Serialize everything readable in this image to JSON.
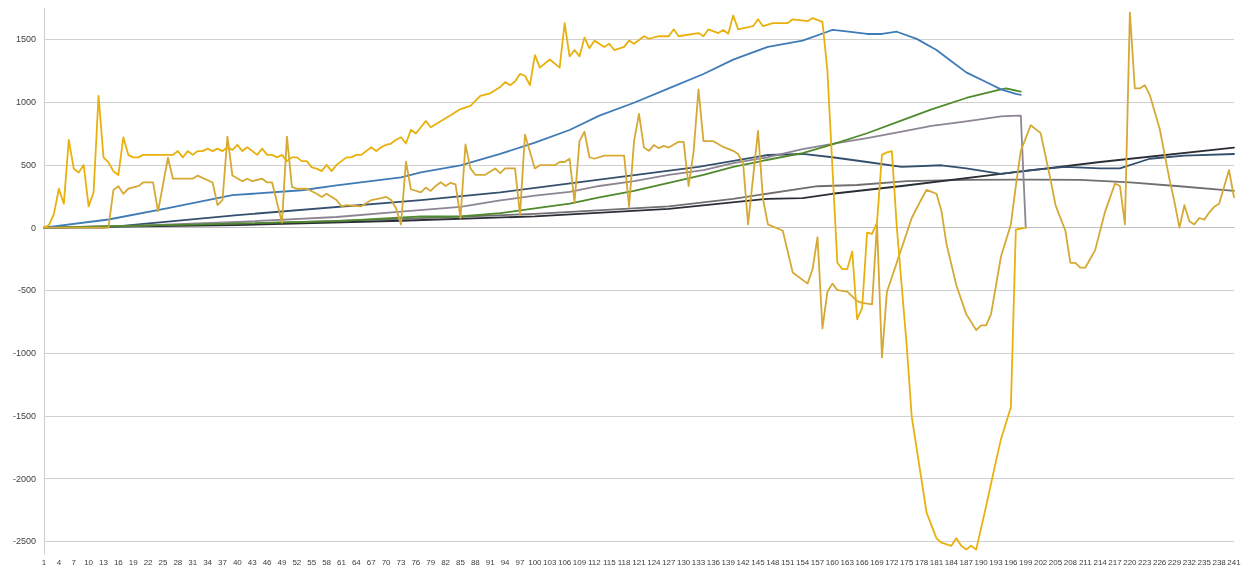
{
  "chart_data": {
    "type": "line",
    "grid": "y",
    "xlim": [
      1,
      241
    ],
    "ylim": [
      -2600,
      1750
    ],
    "xticks": [
      1,
      4,
      7,
      10,
      13,
      16,
      19,
      22,
      25,
      28,
      31,
      34,
      37,
      40,
      43,
      46,
      49,
      52,
      55,
      58,
      61,
      64,
      67,
      70,
      73,
      76,
      79,
      82,
      85,
      88,
      91,
      94,
      97,
      100,
      103,
      106,
      109,
      112,
      115,
      118,
      121,
      124,
      127,
      130,
      133,
      136,
      139,
      142,
      145,
      148,
      151,
      154,
      157,
      160,
      163,
      166,
      169,
      172,
      175,
      178,
      181,
      184,
      187,
      190,
      193,
      196,
      199,
      202,
      205,
      208,
      211,
      214,
      217,
      220,
      223,
      226,
      229,
      232,
      235,
      238,
      241
    ],
    "yticks": [
      -2500,
      -2000,
      -1500,
      -1000,
      -500,
      0,
      500,
      1000,
      1500
    ],
    "series": [
      {
        "color": "#707070",
        "x": [
          1,
          40,
          73,
          100,
          127,
          140,
          157,
          165,
          175,
          187,
          200,
          210,
          220,
          230,
          241
        ],
        "values": [
          0,
          30,
          70,
          110,
          170,
          230,
          330,
          340,
          370,
          380,
          383,
          380,
          360,
          330,
          293
        ]
      },
      {
        "color": "#2a2f36",
        "x": [
          1,
          40,
          73,
          100,
          127,
          147,
          154,
          160,
          174,
          194,
          214,
          241
        ],
        "values": [
          0,
          20,
          55,
          90,
          150,
          230,
          235,
          270,
          332,
          428,
          523,
          637
        ]
      },
      {
        "color": "#34506e",
        "x": [
          1,
          13,
          40,
          77,
          93,
          113,
          133,
          147,
          154,
          160,
          167,
          174,
          182,
          187,
          194,
          200,
          207,
          214,
          218,
          224,
          231,
          241
        ],
        "values": [
          0,
          0,
          100,
          220,
          281,
          383,
          485,
          579,
          587,
          561,
          523,
          485,
          497,
          472,
          428,
          459,
          485,
          472,
          472,
          549,
          574,
          587
        ]
      },
      {
        "color": "#8e8594",
        "x": [
          1,
          20,
          40,
          60,
          73,
          85,
          93,
          100,
          107,
          113,
          120,
          127,
          134,
          140,
          147,
          154,
          160,
          167,
          174,
          180,
          187,
          194,
          198,
          199
        ],
        "values": [
          0,
          15,
          45,
          85,
          128,
          166,
          217,
          255,
          285,
          332,
          370,
          421,
          459,
          515,
          561,
          625,
          668,
          714,
          765,
          811,
          847,
          887,
          893,
          0
        ]
      },
      {
        "color": "#4f8a2c",
        "x": [
          1,
          33,
          60,
          77,
          85,
          93,
          100,
          107,
          113,
          120,
          127,
          134,
          140,
          147,
          154,
          160,
          167,
          174,
          180,
          187,
          194,
          195,
          198
        ],
        "values": [
          0,
          26,
          52,
          90,
          89,
          115,
          153,
          191,
          242,
          293,
          357,
          421,
          485,
          541,
          593,
          663,
          752,
          854,
          943,
          1033,
          1102,
          1109,
          1084
        ]
      },
      {
        "color": "#3f7bb6",
        "x": [
          1,
          14,
          26,
          39,
          53,
          60,
          73,
          77,
          85,
          93,
          100,
          107,
          113,
          120,
          127,
          134,
          140,
          147,
          154,
          159,
          160,
          162,
          167,
          170,
          173,
          177,
          181,
          184,
          187,
          191,
          194,
          197,
          198
        ],
        "values": [
          0,
          65,
          155,
          259,
          298,
          337,
          400,
          440,
          497,
          587,
          677,
          778,
          893,
          995,
          1109,
          1224,
          1339,
          1441,
          1490,
          1561,
          1576,
          1568,
          1543,
          1543,
          1561,
          1504,
          1415,
          1326,
          1237,
          1160,
          1102,
          1066,
          1058
        ]
      },
      {
        "color": "#d6a935",
        "x": [
          1,
          14,
          15,
          16,
          17,
          18,
          20,
          21,
          23,
          24,
          26,
          27,
          31,
          32,
          35,
          36,
          37,
          38,
          39,
          41,
          42,
          43,
          45,
          46,
          47,
          49,
          50,
          51,
          52,
          54,
          56,
          57,
          58,
          60,
          61,
          62,
          65,
          67,
          69,
          70,
          71,
          72,
          73,
          74,
          75,
          77,
          78,
          79,
          80,
          81,
          82,
          83,
          84,
          85,
          86,
          87,
          88,
          90,
          92,
          93,
          94,
          96,
          97,
          98,
          100,
          101,
          104,
          105,
          106,
          107,
          108,
          109,
          110,
          111,
          112,
          114,
          115,
          118,
          119,
          120,
          121,
          122,
          123,
          124,
          125,
          126,
          127,
          129,
          130,
          131,
          132,
          133,
          134,
          136,
          138,
          140,
          141,
          142,
          143,
          145,
          146,
          147,
          150,
          152,
          155,
          156,
          157,
          158,
          159,
          160,
          161,
          163,
          165,
          166,
          168,
          169,
          170,
          171,
          172,
          176,
          178,
          179,
          181,
          182,
          183,
          185,
          187,
          189,
          190,
          191,
          192,
          194,
          196,
          197,
          198,
          200,
          202,
          204,
          205,
          207,
          208,
          209,
          210,
          211,
          213,
          215,
          217,
          218,
          219,
          220,
          221,
          222,
          223,
          224,
          226,
          228,
          229,
          230,
          231,
          232,
          233,
          234,
          235,
          236,
          237,
          238,
          240,
          241
        ],
        "values": [
          0,
          0,
          300,
          330,
          270,
          310,
          330,
          360,
          360,
          130,
          557,
          390,
          390,
          415,
          360,
          180,
          220,
          725,
          415,
          370,
          390,
          370,
          390,
          360,
          360,
          40,
          725,
          325,
          310,
          310,
          270,
          245,
          270,
          220,
          170,
          180,
          170,
          220,
          235,
          245,
          220,
          155,
          25,
          525,
          306,
          281,
          319,
          293,
          332,
          362,
          332,
          357,
          345,
          77,
          663,
          472,
          421,
          421,
          472,
          434,
          472,
          472,
          102,
          740,
          472,
          498,
          498,
          523,
          523,
          549,
          204,
          689,
          765,
          561,
          549,
          574,
          574,
          574,
          166,
          689,
          906,
          638,
          612,
          658,
          633,
          651,
          638,
          684,
          684,
          332,
          600,
          1102,
          689,
          689,
          643,
          612,
          587,
          510,
          26,
          770,
          230,
          26,
          -25,
          -357,
          -446,
          -332,
          -76,
          -803,
          -510,
          -446,
          -497,
          -510,
          -586,
          -599,
          -612,
          26,
          -1033,
          -510,
          -395,
          77,
          230,
          301,
          270,
          133,
          -128,
          -459,
          -689,
          -816,
          -778,
          -778,
          -689,
          -230,
          26,
          332,
          612,
          816,
          753,
          383,
          179,
          -25,
          -281,
          -281,
          -319,
          -319,
          -179,
          128,
          352,
          332,
          26,
          1714,
          1109,
          1109,
          1135,
          1058,
          790,
          383,
          204,
          0,
          179,
          51,
          26,
          77,
          64,
          120,
          166,
          191,
          459,
          242
        ]
      },
      {
        "color": "#e8b10e",
        "x": [
          1,
          2,
          3,
          4,
          5,
          6,
          7,
          8,
          9,
          10,
          11,
          12,
          13,
          14,
          15,
          16,
          17,
          18,
          19,
          20,
          21,
          27,
          28,
          29,
          30,
          31,
          32,
          33,
          34,
          35,
          36,
          37,
          38,
          39,
          40,
          41,
          42,
          43,
          44,
          45,
          46,
          47,
          48,
          49,
          50,
          51,
          52,
          53,
          54,
          55,
          56,
          57,
          58,
          59,
          60,
          61,
          62,
          63,
          64,
          65,
          66,
          67,
          68,
          69,
          70,
          71,
          72,
          73,
          74,
          75,
          76,
          78,
          79,
          83,
          85,
          87,
          89,
          91,
          93,
          94,
          95,
          96,
          97,
          98,
          99,
          100,
          101,
          103,
          105,
          106,
          107,
          108,
          109,
          110,
          111,
          112,
          114,
          115,
          116,
          118,
          119,
          120,
          122,
          123,
          125,
          127,
          128,
          129,
          133,
          134,
          135,
          137,
          138,
          139,
          140,
          141,
          144,
          145,
          146,
          148,
          151,
          152,
          155,
          156,
          158,
          159,
          161,
          162,
          163,
          164,
          165,
          166,
          167,
          168,
          169,
          170,
          171,
          172,
          173,
          175,
          176,
          178,
          179,
          181,
          182,
          184,
          185,
          186,
          187,
          188,
          189,
          191,
          193,
          194,
          196,
          197,
          199
        ],
        "values": [
          0,
          20,
          110,
          310,
          190,
          700,
          470,
          440,
          500,
          170,
          280,
          1050,
          560,
          520,
          450,
          420,
          720,
          580,
          560,
          560,
          580,
          580,
          610,
          560,
          610,
          580,
          610,
          610,
          630,
          610,
          630,
          610,
          640,
          620,
          660,
          610,
          640,
          610,
          580,
          630,
          580,
          580,
          560,
          580,
          530,
          560,
          560,
          530,
          530,
          480,
          470,
          450,
          500,
          450,
          500,
          530,
          560,
          560,
          580,
          580,
          610,
          640,
          610,
          640,
          660,
          670,
          700,
          720,
          670,
          780,
          750,
          850,
          800,
          895,
          945,
          970,
          1050,
          1070,
          1120,
          1160,
          1135,
          1165,
          1225,
          1210,
          1135,
          1375,
          1275,
          1340,
          1275,
          1630,
          1365,
          1415,
          1365,
          1515,
          1430,
          1490,
          1440,
          1465,
          1415,
          1440,
          1490,
          1465,
          1525,
          1505,
          1525,
          1525,
          1580,
          1525,
          1550,
          1525,
          1580,
          1550,
          1575,
          1545,
          1690,
          1580,
          1605,
          1660,
          1605,
          1630,
          1630,
          1660,
          1645,
          1670,
          1640,
          1250,
          -280,
          -330,
          -330,
          -190,
          -730,
          -640,
          -40,
          -50,
          40,
          580,
          600,
          610,
          0,
          -945,
          -1505,
          -2015,
          -2270,
          -2475,
          -2510,
          -2535,
          -2475,
          -2535,
          -2565,
          -2535,
          -2565,
          -2220,
          -1860,
          -1685,
          -1430,
          -15,
          0
        ]
      }
    ]
  }
}
